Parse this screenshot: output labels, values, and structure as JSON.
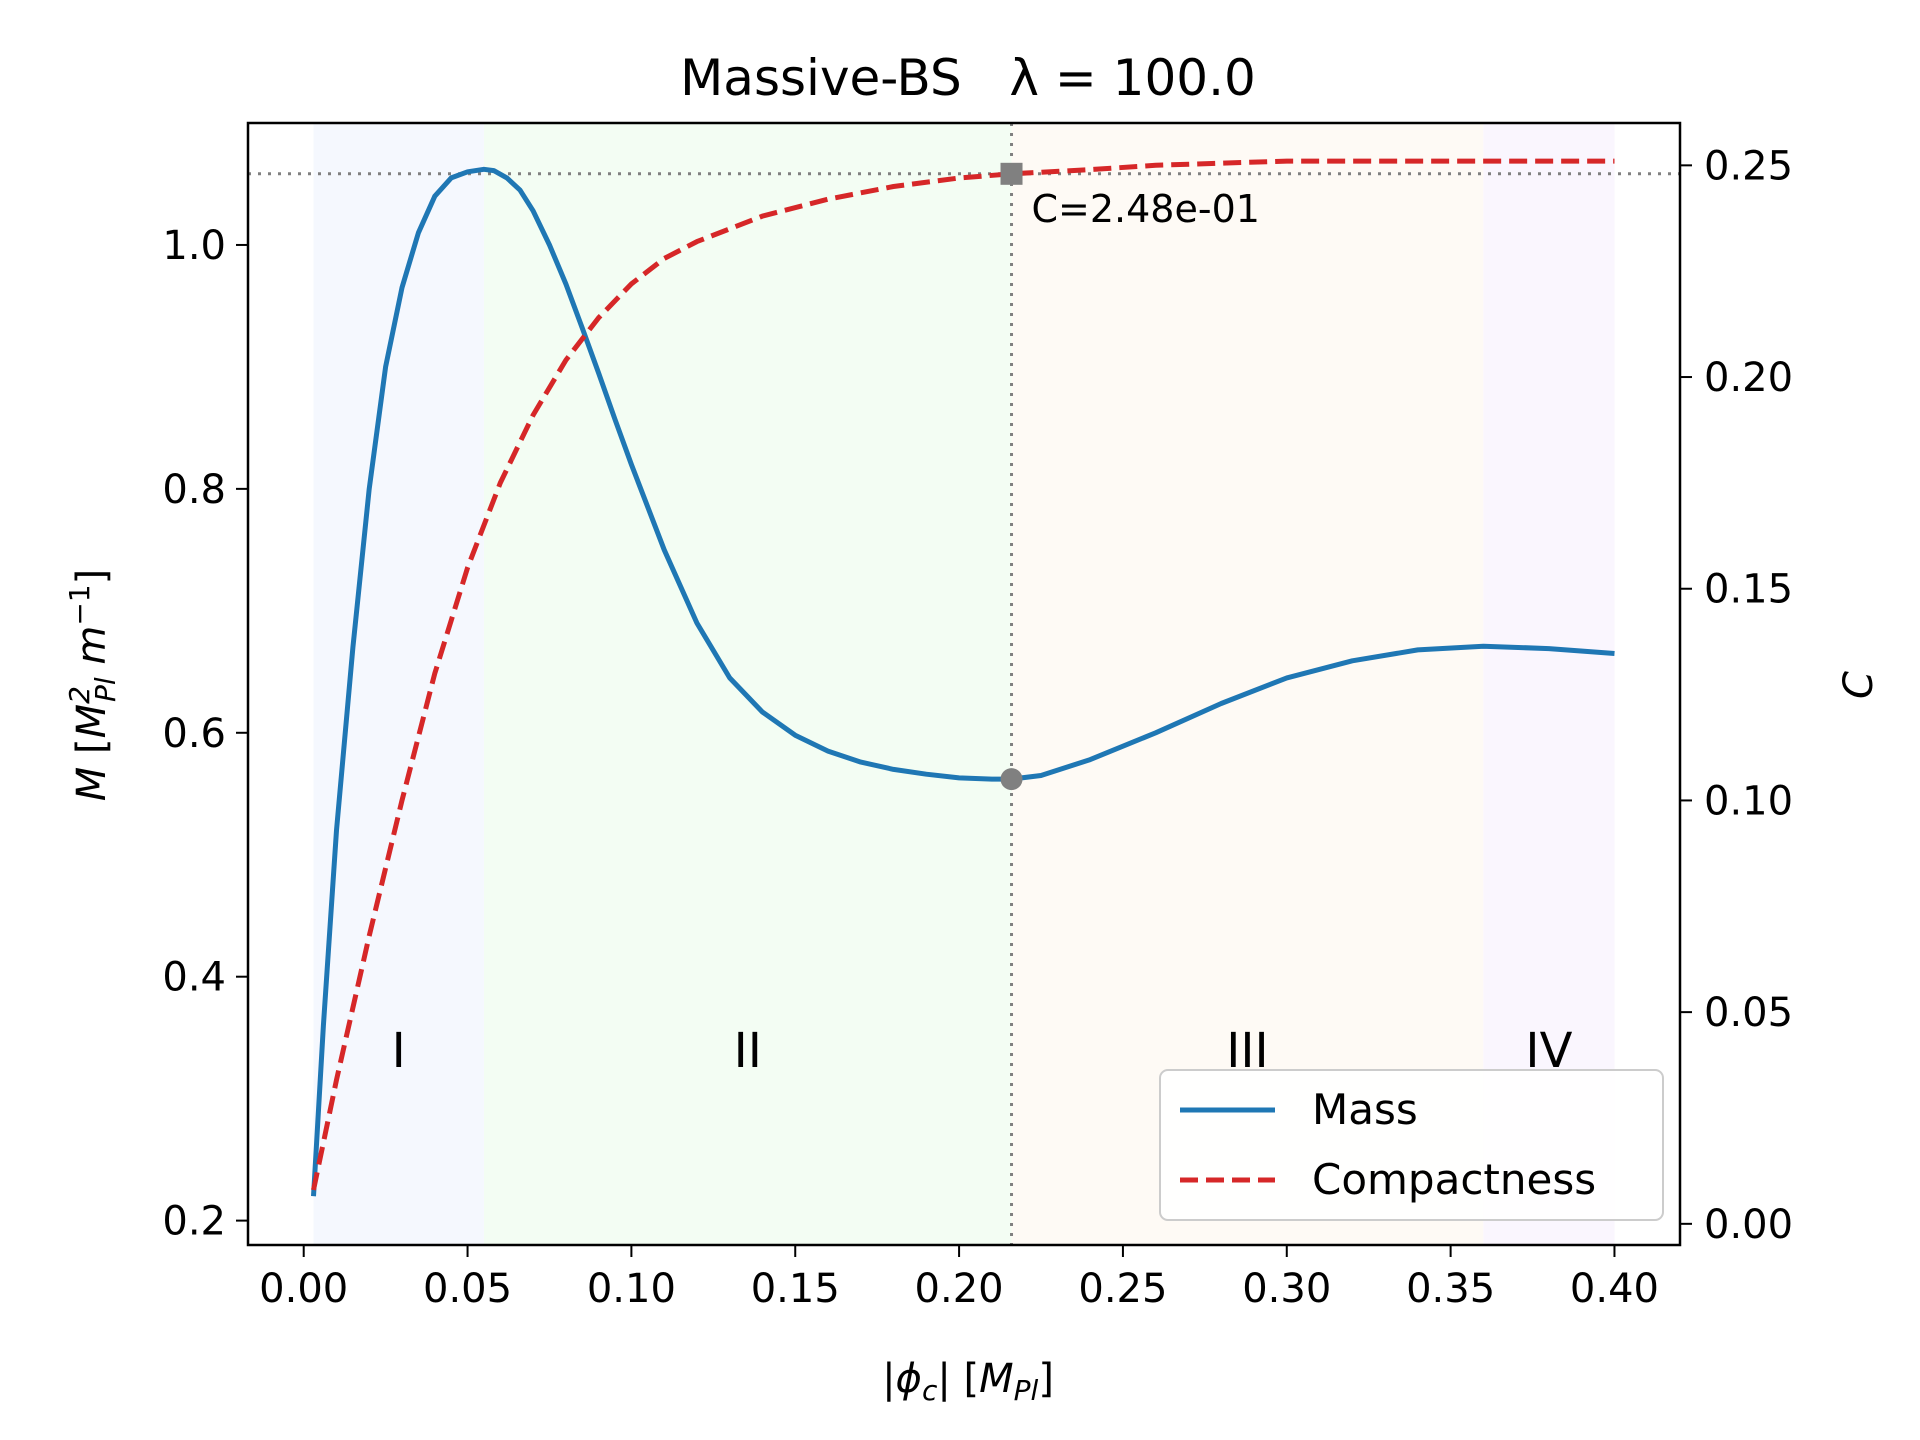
{
  "chart_data": {
    "type": "line",
    "title": "Massive-BS   λ = 100.0",
    "xlabel": "|ϕc| [MPl]",
    "ylabel_left": "M [MPl² m⁻¹]",
    "ylabel_right": "C",
    "xlim": [
      -0.017,
      0.42
    ],
    "ylim_left": [
      0.18,
      1.1
    ],
    "ylim_right": [
      -0.005,
      0.26
    ],
    "x_ticks": [
      0.0,
      0.05,
      0.1,
      0.15,
      0.2,
      0.25,
      0.3,
      0.35,
      0.4
    ],
    "x_tick_labels": [
      "0.00",
      "0.05",
      "0.10",
      "0.15",
      "0.20",
      "0.25",
      "0.30",
      "0.35",
      "0.40"
    ],
    "y_left_ticks": [
      0.2,
      0.4,
      0.6,
      0.8,
      1.0
    ],
    "y_left_tick_labels": [
      "0.2",
      "0.4",
      "0.6",
      "0.8",
      "1.0"
    ],
    "y_right_ticks": [
      0.0,
      0.05,
      0.1,
      0.15,
      0.2,
      0.25
    ],
    "y_right_tick_labels": [
      "0.00",
      "0.05",
      "0.10",
      "0.15",
      "0.20",
      "0.25"
    ],
    "regions": [
      {
        "label": "I",
        "x0": 0.003,
        "x1": 0.055,
        "color": "#f5f8fe"
      },
      {
        "label": "II",
        "x0": 0.055,
        "x1": 0.216,
        "color": "#f3fdf3"
      },
      {
        "label": "III",
        "x0": 0.216,
        "x1": 0.36,
        "color": "#fefaf5"
      },
      {
        "label": "IV",
        "x0": 0.36,
        "x1": 0.4,
        "color": "#faf6fe"
      }
    ],
    "region_label_y": 0.34,
    "series": [
      {
        "name": "Mass",
        "axis": "left",
        "color": "#1f77b4",
        "style": "solid",
        "x": [
          0.003,
          0.006,
          0.01,
          0.015,
          0.02,
          0.025,
          0.03,
          0.035,
          0.04,
          0.045,
          0.05,
          0.055,
          0.058,
          0.062,
          0.066,
          0.07,
          0.075,
          0.08,
          0.085,
          0.09,
          0.095,
          0.1,
          0.11,
          0.12,
          0.13,
          0.14,
          0.15,
          0.16,
          0.17,
          0.18,
          0.19,
          0.2,
          0.21,
          0.216,
          0.225,
          0.24,
          0.26,
          0.28,
          0.3,
          0.32,
          0.34,
          0.36,
          0.38,
          0.4
        ],
        "y": [
          0.22,
          0.36,
          0.52,
          0.67,
          0.8,
          0.9,
          0.965,
          1.01,
          1.04,
          1.055,
          1.06,
          1.062,
          1.061,
          1.055,
          1.045,
          1.028,
          1.0,
          0.968,
          0.932,
          0.895,
          0.857,
          0.82,
          0.75,
          0.69,
          0.645,
          0.617,
          0.598,
          0.585,
          0.576,
          0.57,
          0.566,
          0.563,
          0.562,
          0.562,
          0.565,
          0.578,
          0.6,
          0.624,
          0.645,
          0.659,
          0.668,
          0.671,
          0.669,
          0.665
        ]
      },
      {
        "name": "Compactness",
        "axis": "right",
        "color": "#d62728",
        "style": "dashed",
        "x": [
          0.003,
          0.01,
          0.02,
          0.03,
          0.04,
          0.05,
          0.06,
          0.07,
          0.08,
          0.09,
          0.1,
          0.11,
          0.12,
          0.14,
          0.16,
          0.18,
          0.2,
          0.216,
          0.24,
          0.26,
          0.28,
          0.3,
          0.32,
          0.34,
          0.36,
          0.38,
          0.4
        ],
        "y": [
          0.008,
          0.034,
          0.068,
          0.1,
          0.13,
          0.155,
          0.175,
          0.191,
          0.204,
          0.214,
          0.222,
          0.228,
          0.232,
          0.238,
          0.242,
          0.245,
          0.247,
          0.248,
          0.249,
          0.25,
          0.2505,
          0.251,
          0.251,
          0.251,
          0.251,
          0.251,
          0.251
        ]
      }
    ],
    "marker": {
      "x": 0.216,
      "mass_y": 0.562,
      "compactness_y": 0.248,
      "label": "C=2.48e-01",
      "color": "#808080"
    },
    "hline_right_y": 0.248,
    "legend": {
      "position": "lower-right",
      "entries": [
        "Mass",
        "Compactness"
      ]
    },
    "grid": false
  }
}
